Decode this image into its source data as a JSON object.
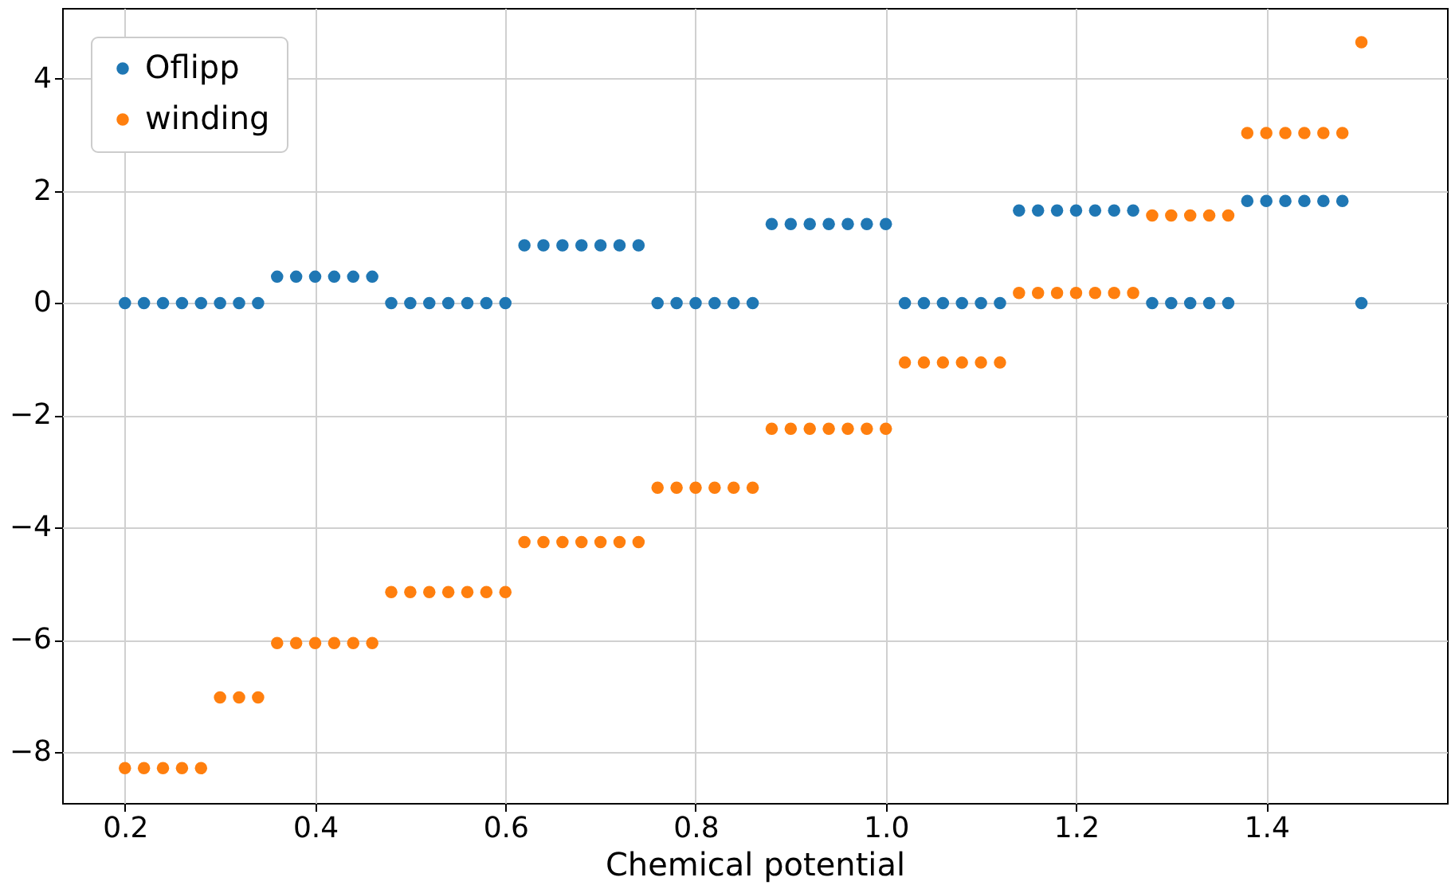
{
  "chart_data": {
    "type": "scatter",
    "xlabel": "Chemical potential",
    "x": [
      0.2,
      0.22,
      0.24,
      0.26,
      0.28,
      0.3,
      0.32,
      0.34,
      0.36,
      0.38,
      0.4,
      0.42,
      0.44,
      0.46,
      0.48,
      0.5,
      0.52,
      0.54,
      0.56,
      0.58,
      0.6,
      0.62,
      0.64,
      0.66,
      0.68,
      0.7,
      0.72,
      0.74,
      0.76,
      0.78,
      0.8,
      0.82,
      0.84,
      0.86,
      0.88,
      0.9,
      0.92,
      0.94,
      0.96,
      0.98,
      1.0,
      1.02,
      1.04,
      1.06,
      1.08,
      1.1,
      1.12,
      1.14,
      1.16,
      1.18,
      1.2,
      1.22,
      1.24,
      1.26,
      1.28,
      1.3,
      1.32,
      1.34,
      1.36,
      1.38,
      1.4,
      1.42,
      1.44,
      1.46,
      1.48,
      1.5
    ],
    "series": [
      {
        "name": "Oflipp",
        "color": "#1f77b4",
        "values": [
          0,
          0,
          0,
          0,
          0,
          0,
          0,
          0,
          0.47,
          0.47,
          0.47,
          0.47,
          0.47,
          0.47,
          0,
          0,
          0,
          0,
          0,
          0,
          0,
          1.03,
          1.03,
          1.03,
          1.03,
          1.03,
          1.03,
          1.03,
          0,
          0,
          0,
          0,
          0,
          0,
          1.41,
          1.41,
          1.41,
          1.41,
          1.41,
          1.41,
          1.41,
          0,
          0,
          0,
          0,
          0,
          0,
          1.65,
          1.65,
          1.65,
          1.65,
          1.65,
          1.65,
          1.65,
          0,
          0,
          0,
          0,
          0,
          1.82,
          1.82,
          1.82,
          1.82,
          1.82,
          1.82,
          0
        ]
      },
      {
        "name": "winding",
        "color": "#ff7f0e",
        "values": [
          -8.29,
          -8.29,
          -8.29,
          -8.29,
          -8.29,
          -7.03,
          -7.03,
          -7.03,
          -6.06,
          -6.06,
          -6.06,
          -6.06,
          -6.06,
          -6.06,
          -5.15,
          -5.15,
          -5.15,
          -5.15,
          -5.15,
          -5.15,
          -5.15,
          -4.26,
          -4.26,
          -4.26,
          -4.26,
          -4.26,
          -4.26,
          -4.26,
          -3.29,
          -3.29,
          -3.29,
          -3.29,
          -3.29,
          -3.29,
          -2.24,
          -2.24,
          -2.24,
          -2.24,
          -2.24,
          -2.24,
          -2.24,
          -1.06,
          -1.06,
          -1.06,
          -1.06,
          -1.06,
          -1.06,
          0.18,
          0.18,
          0.18,
          0.18,
          0.18,
          0.18,
          0.18,
          1.56,
          1.56,
          1.56,
          1.56,
          1.56,
          3.03,
          3.03,
          3.03,
          3.03,
          3.03,
          3.03,
          4.65
        ]
      }
    ],
    "xlim": [
      0.134,
      1.59
    ],
    "xticks": [
      0.2,
      0.4,
      0.6,
      0.8,
      {
        "value": 1.0,
        "label": "1.0"
      },
      1.2,
      1.4
    ],
    "ylim": [
      -8.91,
      5.26
    ],
    "yticks": [
      -8,
      -6,
      -4,
      -2,
      0,
      2,
      4
    ],
    "grid": true,
    "legend": "top left",
    "marker": "circle"
  }
}
